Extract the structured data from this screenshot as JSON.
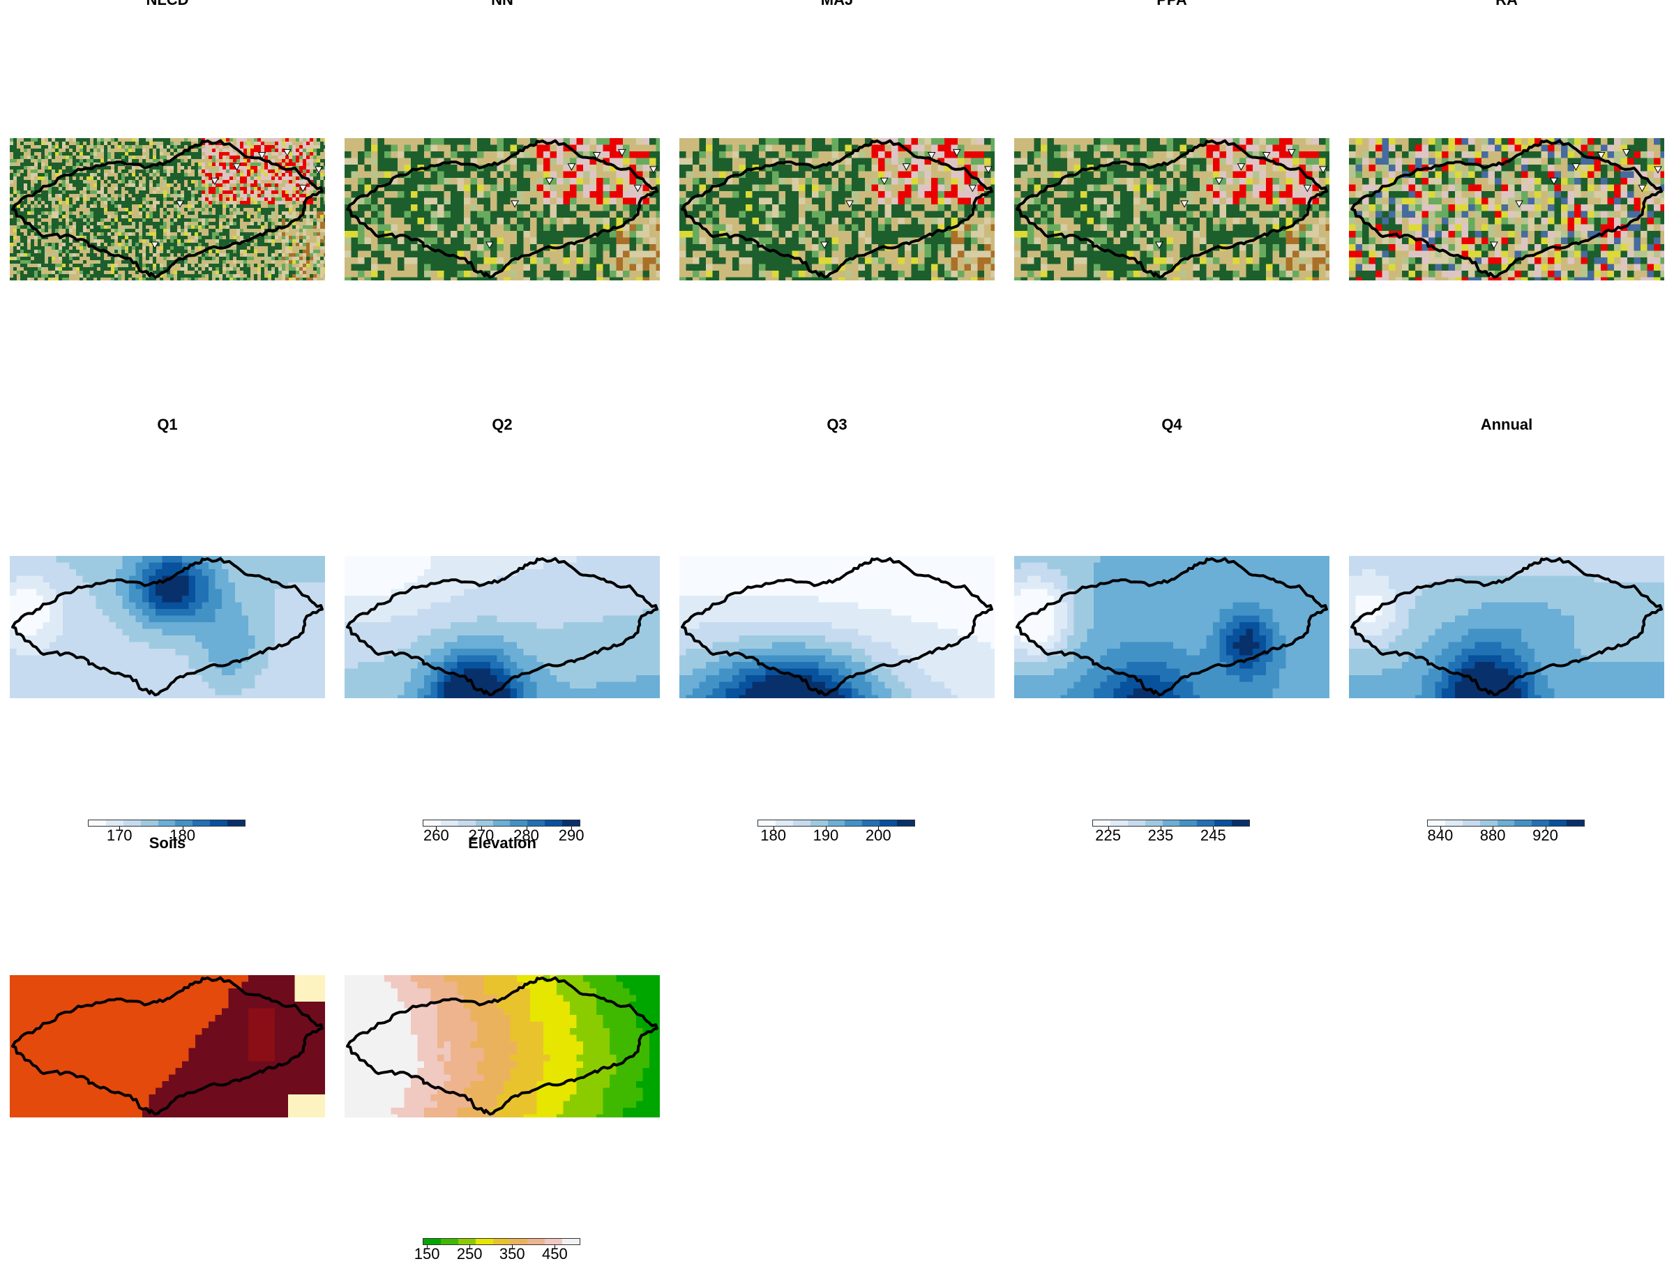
{
  "rows": [
    {
      "panels": [
        {
          "id": "nlcd",
          "title": "NLCD",
          "pattern": "nlcd"
        },
        {
          "id": "nn",
          "title": "NN",
          "pattern": "landcover"
        },
        {
          "id": "maj",
          "title": "MAJ",
          "pattern": "landcover"
        },
        {
          "id": "ppa",
          "title": "PPA",
          "pattern": "landcover"
        },
        {
          "id": "ra",
          "title": "RA",
          "pattern": "random"
        }
      ]
    },
    {
      "panels": [
        {
          "id": "q1",
          "title": "Q1",
          "pattern": "q1",
          "legend": {
            "min": 165,
            "max": 190,
            "ticks": [
              170,
              180
            ],
            "colors": [
              "#f7fbff",
              "#deebf7",
              "#c6dbef",
              "#9ecae1",
              "#6baed6",
              "#4292c6",
              "#2171b5",
              "#08519c",
              "#08306b"
            ]
          }
        },
        {
          "id": "q2",
          "title": "Q2",
          "pattern": "q2",
          "legend": {
            "min": 257,
            "max": 292,
            "ticks": [
              260,
              270,
              280,
              290
            ],
            "colors": [
              "#f7fbff",
              "#deebf7",
              "#c6dbef",
              "#9ecae1",
              "#6baed6",
              "#4292c6",
              "#2171b5",
              "#08519c",
              "#08306b"
            ]
          }
        },
        {
          "id": "q3",
          "title": "Q3",
          "pattern": "q3",
          "legend": {
            "min": 177,
            "max": 207,
            "ticks": [
              180,
              190,
              200
            ],
            "colors": [
              "#f7fbff",
              "#deebf7",
              "#c6dbef",
              "#9ecae1",
              "#6baed6",
              "#4292c6",
              "#2171b5",
              "#08519c",
              "#08306b"
            ]
          }
        },
        {
          "id": "q4",
          "title": "Q4",
          "pattern": "q4",
          "legend": {
            "min": 222,
            "max": 252,
            "ticks": [
              225,
              235,
              245
            ],
            "colors": [
              "#f7fbff",
              "#deebf7",
              "#c6dbef",
              "#9ecae1",
              "#6baed6",
              "#4292c6",
              "#2171b5",
              "#08519c",
              "#08306b"
            ]
          }
        },
        {
          "id": "annual",
          "title": "Annual",
          "pattern": "annual",
          "legend": {
            "min": 830,
            "max": 950,
            "ticks": [
              840,
              880,
              920
            ],
            "colors": [
              "#f7fbff",
              "#deebf7",
              "#c6dbef",
              "#9ecae1",
              "#6baed6",
              "#4292c6",
              "#2171b5",
              "#08519c",
              "#08306b"
            ]
          }
        }
      ]
    },
    {
      "panels": [
        {
          "id": "soils",
          "title": "Soils",
          "pattern": "soils"
        },
        {
          "id": "elevation",
          "title": "Elevation",
          "pattern": "elevation",
          "legend": {
            "min": 140,
            "max": 510,
            "ticks": [
              150,
              250,
              350,
              450
            ],
            "colors": [
              "#00a600",
              "#3fb900",
              "#8bcc00",
              "#e6e600",
              "#e8c32e",
              "#ebb25e",
              "#edb48e",
              "#f0c9c0",
              "#f2f2f2"
            ]
          }
        }
      ]
    }
  ],
  "colors": {
    "nlcd": [
      "#1c5f2c",
      "#1c5f2c",
      "#68ab5f",
      "#ccba7c",
      "#dcd939",
      "#d7cca4",
      "#ab7028",
      "#eb0000",
      "#dec5c5",
      "#d99282",
      "#b5c58f",
      "#466b9f"
    ],
    "blues": [
      "#f7fbff",
      "#deebf7",
      "#c6dbef",
      "#9ecae1",
      "#6baed6",
      "#4292c6",
      "#2171b5",
      "#08519c",
      "#08306b"
    ],
    "soils": [
      "#e34a0c",
      "#6e0b1d",
      "#8b0d16",
      "#fcf3c0",
      "#f4b96a"
    ],
    "terrain": [
      "#00a600",
      "#3fb900",
      "#8bcc00",
      "#e6e600",
      "#e8c32e",
      "#ebb25e",
      "#edb48e",
      "#f0c9c0",
      "#f2f2f2"
    ],
    "outline": "#000000"
  }
}
